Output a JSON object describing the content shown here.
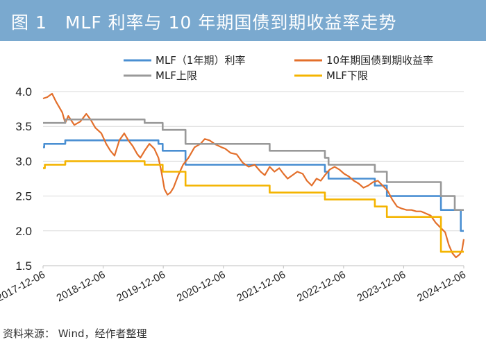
{
  "header": {
    "title": "图 1　MLF 利率与 10 年期国债到期收益率走势"
  },
  "source": {
    "text": "资料来源：  Wind，经作者整理"
  },
  "chart_data": {
    "type": "line",
    "title": "MLF 利率与 10 年期国债到期收益率走势",
    "xlabel": "",
    "ylabel": "",
    "ylim": [
      1.5,
      4.0
    ],
    "yticks": [
      "4.0",
      "3.5",
      "3.0",
      "2.5",
      "2.0",
      "1.5"
    ],
    "xticks": [
      "2017-12-06",
      "2018-12-06",
      "2019-12-06",
      "2020-12-06",
      "2021-12-06",
      "2022-12-06",
      "2023-12-06",
      "2024-12-06"
    ],
    "xrange": [
      2017.93,
      2024.93
    ],
    "legend_position": "top",
    "series": [
      {
        "name": "MLF（1年期）利率",
        "color": "#4a8fd2",
        "step": true,
        "points": [
          [
            2017.93,
            3.2
          ],
          [
            2017.95,
            3.25
          ],
          [
            2018.3,
            3.3
          ],
          [
            2019.85,
            3.25
          ],
          [
            2019.92,
            3.15
          ],
          [
            2020.3,
            2.95
          ],
          [
            2022.62,
            2.85
          ],
          [
            2022.68,
            2.75
          ],
          [
            2023.45,
            2.65
          ],
          [
            2023.65,
            2.5
          ],
          [
            2024.55,
            2.3
          ],
          [
            2024.88,
            2.0
          ],
          [
            2024.93,
            2.0
          ]
        ]
      },
      {
        "name": "10年期国债到期收益率",
        "color": "#e36f2b",
        "step": false,
        "points": [
          [
            2017.93,
            3.9
          ],
          [
            2018.0,
            3.92
          ],
          [
            2018.08,
            3.97
          ],
          [
            2018.15,
            3.85
          ],
          [
            2018.25,
            3.7
          ],
          [
            2018.3,
            3.55
          ],
          [
            2018.35,
            3.65
          ],
          [
            2018.45,
            3.52
          ],
          [
            2018.55,
            3.57
          ],
          [
            2018.65,
            3.68
          ],
          [
            2018.72,
            3.6
          ],
          [
            2018.8,
            3.48
          ],
          [
            2018.9,
            3.4
          ],
          [
            2018.98,
            3.25
          ],
          [
            2019.05,
            3.15
          ],
          [
            2019.12,
            3.08
          ],
          [
            2019.2,
            3.3
          ],
          [
            2019.28,
            3.4
          ],
          [
            2019.35,
            3.3
          ],
          [
            2019.42,
            3.22
          ],
          [
            2019.5,
            3.1
          ],
          [
            2019.55,
            3.05
          ],
          [
            2019.62,
            3.15
          ],
          [
            2019.7,
            3.25
          ],
          [
            2019.78,
            3.18
          ],
          [
            2019.85,
            3.05
          ],
          [
            2019.9,
            2.85
          ],
          [
            2019.95,
            2.6
          ],
          [
            2020.0,
            2.52
          ],
          [
            2020.05,
            2.55
          ],
          [
            2020.1,
            2.62
          ],
          [
            2020.18,
            2.8
          ],
          [
            2020.26,
            2.95
          ],
          [
            2020.35,
            3.05
          ],
          [
            2020.45,
            3.2
          ],
          [
            2020.55,
            3.25
          ],
          [
            2020.62,
            3.32
          ],
          [
            2020.7,
            3.3
          ],
          [
            2020.8,
            3.24
          ],
          [
            2020.9,
            3.2
          ],
          [
            2020.96,
            3.18
          ],
          [
            2021.05,
            3.12
          ],
          [
            2021.15,
            3.1
          ],
          [
            2021.25,
            2.98
          ],
          [
            2021.35,
            2.92
          ],
          [
            2021.45,
            2.95
          ],
          [
            2021.55,
            2.85
          ],
          [
            2021.62,
            2.8
          ],
          [
            2021.7,
            2.92
          ],
          [
            2021.78,
            2.85
          ],
          [
            2021.86,
            2.9
          ],
          [
            2021.93,
            2.82
          ],
          [
            2022.0,
            2.75
          ],
          [
            2022.08,
            2.8
          ],
          [
            2022.16,
            2.85
          ],
          [
            2022.25,
            2.82
          ],
          [
            2022.32,
            2.72
          ],
          [
            2022.4,
            2.65
          ],
          [
            2022.48,
            2.75
          ],
          [
            2022.55,
            2.72
          ],
          [
            2022.62,
            2.8
          ],
          [
            2022.7,
            2.88
          ],
          [
            2022.78,
            2.92
          ],
          [
            2022.86,
            2.88
          ],
          [
            2022.94,
            2.82
          ],
          [
            2023.02,
            2.78
          ],
          [
            2023.1,
            2.72
          ],
          [
            2023.18,
            2.68
          ],
          [
            2023.26,
            2.62
          ],
          [
            2023.34,
            2.65
          ],
          [
            2023.42,
            2.7
          ],
          [
            2023.5,
            2.72
          ],
          [
            2023.58,
            2.65
          ],
          [
            2023.66,
            2.58
          ],
          [
            2023.74,
            2.45
          ],
          [
            2023.82,
            2.35
          ],
          [
            2023.9,
            2.32
          ],
          [
            2023.98,
            2.3
          ],
          [
            2024.06,
            2.3
          ],
          [
            2024.14,
            2.28
          ],
          [
            2024.22,
            2.28
          ],
          [
            2024.3,
            2.25
          ],
          [
            2024.38,
            2.22
          ],
          [
            2024.46,
            2.12
          ],
          [
            2024.54,
            2.05
          ],
          [
            2024.62,
            1.98
          ],
          [
            2024.68,
            1.8
          ],
          [
            2024.74,
            1.68
          ],
          [
            2024.8,
            1.62
          ],
          [
            2024.86,
            1.66
          ],
          [
            2024.9,
            1.72
          ],
          [
            2024.93,
            1.88
          ]
        ]
      },
      {
        "name": "MLF上限",
        "color": "#999999",
        "step": true,
        "points": [
          [
            2017.93,
            3.55
          ],
          [
            2018.3,
            3.6
          ],
          [
            2019.62,
            3.55
          ],
          [
            2019.92,
            3.45
          ],
          [
            2020.3,
            3.25
          ],
          [
            2021.7,
            3.15
          ],
          [
            2022.62,
            3.05
          ],
          [
            2022.68,
            2.95
          ],
          [
            2023.45,
            2.85
          ],
          [
            2023.65,
            2.7
          ],
          [
            2024.55,
            2.5
          ],
          [
            2024.78,
            2.3
          ],
          [
            2024.93,
            2.3
          ]
        ]
      },
      {
        "name": "MLF下限",
        "color": "#f4b400",
        "step": true,
        "points": [
          [
            2017.93,
            2.9
          ],
          [
            2017.96,
            2.95
          ],
          [
            2018.3,
            3.0
          ],
          [
            2019.62,
            2.95
          ],
          [
            2019.92,
            2.85
          ],
          [
            2020.3,
            2.65
          ],
          [
            2021.7,
            2.55
          ],
          [
            2022.62,
            2.45
          ],
          [
            2023.45,
            2.35
          ],
          [
            2023.65,
            2.2
          ],
          [
            2024.55,
            1.7
          ],
          [
            2024.88,
            1.7
          ],
          [
            2024.93,
            1.7
          ]
        ]
      }
    ]
  }
}
